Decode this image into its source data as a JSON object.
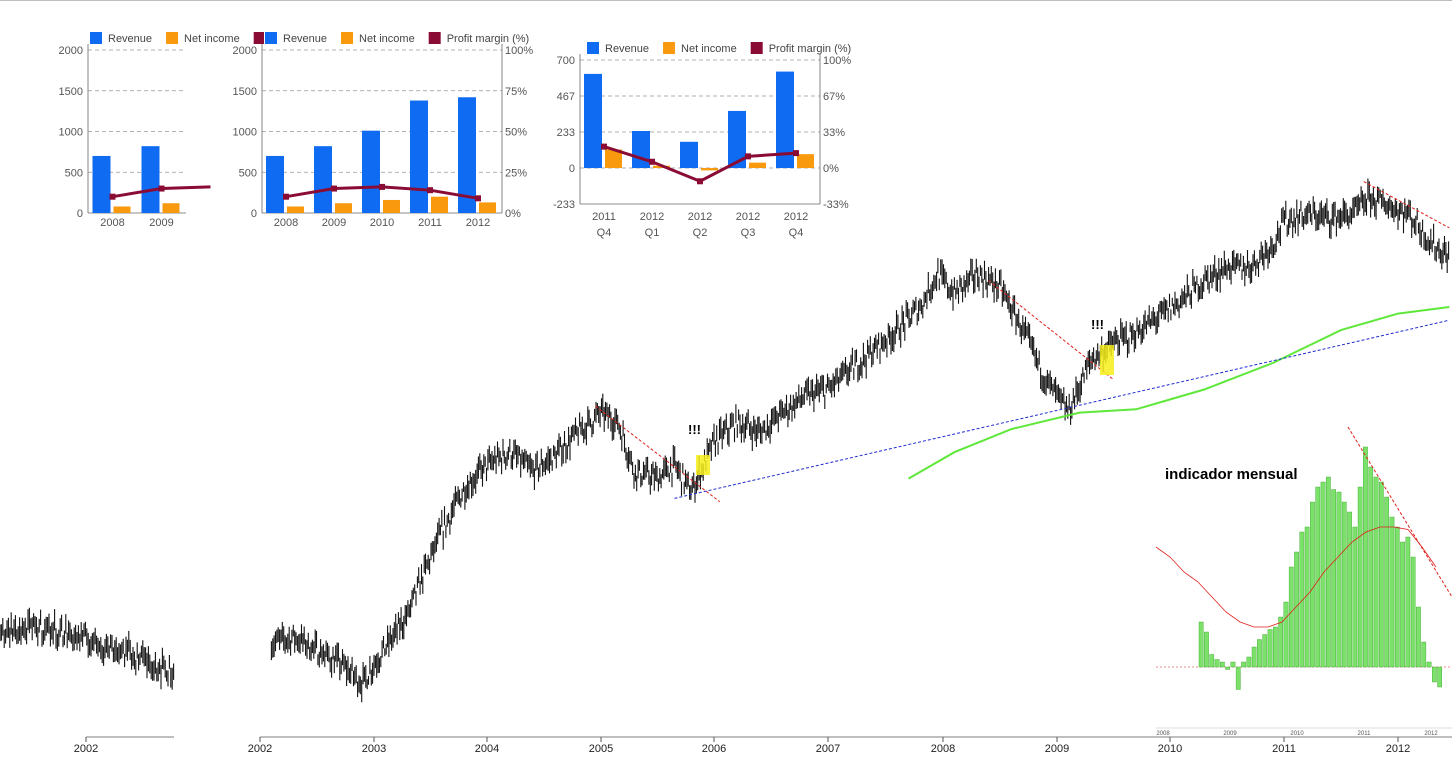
{
  "colors": {
    "revenue": "#0f6bf2",
    "net_income": "#f99a0e",
    "margin": "#8a0b33",
    "candles": "#111111",
    "trend_red": "#e0201b",
    "trend_blue": "#1f2bd1",
    "moving_average": "#5fe83a",
    "highlight": "#f6ef1a",
    "histogram": "#7be16a",
    "histogram_ma": "#e0201b"
  },
  "legend": {
    "revenue": "Revenue",
    "net_income": "Net income",
    "margin": "Profit margin (%)"
  },
  "annotations": {
    "marker_1": "!!!",
    "marker_2": "!!!"
  },
  "indicator": {
    "title": "indicador mensual",
    "axis_years": [
      "2008",
      "2009",
      "2010",
      "2011",
      "2012"
    ]
  },
  "price_axis_years": [
    "2002",
    "2003",
    "2004",
    "2005",
    "2006",
    "2007",
    "2008",
    "2009",
    "2010",
    "2011",
    "2012"
  ],
  "left_axis_years": [
    "2002"
  ],
  "chart_data": [
    {
      "type": "bar",
      "categories": [
        "2008",
        "2009"
      ],
      "series": [
        {
          "name": "Revenue",
          "values": [
            700,
            820
          ]
        },
        {
          "name": "",
          "values": [
            80,
            120
          ]
        }
      ],
      "line_series": {
        "name": "",
        "values": [
          10,
          15
        ]
      },
      "ylim": [
        0,
        2000
      ],
      "yticks": [
        "0",
        "500",
        "1000",
        "1500",
        "2000"
      ],
      "grid": true,
      "legend": "top"
    },
    {
      "type": "bar",
      "categories": [
        "2008",
        "2009",
        "2010",
        "2011",
        "2012"
      ],
      "series": [
        {
          "name": "Revenue",
          "values": [
            700,
            820,
            1010,
            1380,
            1420
          ]
        },
        {
          "name": "Net income",
          "values": [
            80,
            120,
            160,
            200,
            130
          ]
        }
      ],
      "line_series": {
        "name": "Profit margin (%)",
        "values": [
          10,
          15,
          16,
          14,
          9
        ],
        "axis": "right"
      },
      "ylim": [
        0,
        2000
      ],
      "yticks": [
        "0",
        "500",
        "1000",
        "1500",
        "2000"
      ],
      "y2lim": [
        0,
        100
      ],
      "y2ticks": [
        "0%",
        "25%",
        "50%",
        "75%",
        "100%"
      ],
      "grid": true,
      "legend": "top"
    },
    {
      "type": "bar",
      "categories": [
        "2011 Q4",
        "2012 Q1",
        "2012 Q2",
        "2012 Q3",
        "2012 Q4"
      ],
      "category_lines": [
        [
          "2011",
          "Q4"
        ],
        [
          "2012",
          "Q1"
        ],
        [
          "2012",
          "Q2"
        ],
        [
          "2012",
          "Q3"
        ],
        [
          "2012",
          "Q4"
        ]
      ],
      "series": [
        {
          "name": "Revenue",
          "values": [
            610,
            240,
            170,
            370,
            625
          ]
        },
        {
          "name": "Net income",
          "values": [
            120,
            15,
            -15,
            35,
            90
          ]
        }
      ],
      "line_series": {
        "name": "Profit margin (%)",
        "values": [
          20,
          6,
          -12,
          11,
          14
        ],
        "axis": "right"
      },
      "ylim": [
        -233,
        700
      ],
      "yticks": [
        "-233",
        "0",
        "233",
        "467",
        "700"
      ],
      "y2lim": [
        -33,
        100
      ],
      "y2ticks": [
        "-33%",
        "0%",
        "33%",
        "67%",
        "100%"
      ],
      "grid": true,
      "legend": "top"
    },
    {
      "type": "line",
      "title": "",
      "x_range": [
        2002.1,
        2012.45
      ],
      "price_path": [
        [
          2002.1,
          0.08
        ],
        [
          2002.3,
          0.1
        ],
        [
          2002.5,
          0.06
        ],
        [
          2002.7,
          0.02
        ],
        [
          2002.9,
          -0.04
        ],
        [
          2003.0,
          0.02
        ],
        [
          2003.15,
          0.09
        ],
        [
          2003.3,
          0.17
        ],
        [
          2003.45,
          0.3
        ],
        [
          2003.6,
          0.42
        ],
        [
          2003.8,
          0.55
        ],
        [
          2004.0,
          0.62
        ],
        [
          2004.2,
          0.66
        ],
        [
          2004.4,
          0.6
        ],
        [
          2004.6,
          0.65
        ],
        [
          2004.8,
          0.72
        ],
        [
          2005.0,
          0.78
        ],
        [
          2005.15,
          0.75
        ],
        [
          2005.3,
          0.6
        ],
        [
          2005.5,
          0.58
        ],
        [
          2005.65,
          0.62
        ],
        [
          2005.8,
          0.54
        ],
        [
          2006.0,
          0.69
        ],
        [
          2006.2,
          0.75
        ],
        [
          2006.4,
          0.72
        ],
        [
          2006.6,
          0.78
        ],
        [
          2006.8,
          0.83
        ],
        [
          2007.0,
          0.85
        ],
        [
          2007.2,
          0.91
        ],
        [
          2007.4,
          0.97
        ],
        [
          2007.6,
          1.03
        ],
        [
          2007.8,
          1.1
        ],
        [
          2007.95,
          1.2
        ],
        [
          2008.1,
          1.14
        ],
        [
          2008.3,
          1.2
        ],
        [
          2008.5,
          1.16
        ],
        [
          2008.7,
          1.03
        ],
        [
          2008.9,
          0.88
        ],
        [
          2009.1,
          0.78
        ],
        [
          2009.3,
          0.94
        ],
        [
          2009.5,
          0.99
        ],
        [
          2009.7,
          1.02
        ],
        [
          2009.9,
          1.07
        ],
        [
          2010.1,
          1.12
        ],
        [
          2010.3,
          1.18
        ],
        [
          2010.5,
          1.22
        ],
        [
          2010.7,
          1.22
        ],
        [
          2010.9,
          1.29
        ],
        [
          2011.0,
          1.36
        ],
        [
          2011.2,
          1.38
        ],
        [
          2011.4,
          1.37
        ],
        [
          2011.6,
          1.38
        ],
        [
          2011.75,
          1.43
        ],
        [
          2011.9,
          1.41
        ],
        [
          2012.1,
          1.38
        ],
        [
          2012.3,
          1.29
        ],
        [
          2012.45,
          1.25
        ]
      ],
      "moving_average": [
        [
          2007.7,
          0.58
        ],
        [
          2008.1,
          0.66
        ],
        [
          2008.6,
          0.73
        ],
        [
          2009.2,
          0.78
        ],
        [
          2009.7,
          0.79
        ],
        [
          2010.3,
          0.85
        ],
        [
          2010.9,
          0.93
        ],
        [
          2011.5,
          1.03
        ],
        [
          2012.0,
          1.08
        ],
        [
          2012.45,
          1.1
        ]
      ],
      "trend_lines": [
        {
          "color": "red",
          "points": [
            [
              2004.95,
              0.8
            ],
            [
              2006.05,
              0.51
            ]
          ]
        },
        {
          "color": "red",
          "points": [
            [
              2008.4,
              1.18
            ],
            [
              2009.5,
              0.88
            ]
          ]
        },
        {
          "color": "red",
          "points": [
            [
              2011.7,
              1.48
            ],
            [
              2012.45,
              1.34
            ]
          ]
        },
        {
          "color": "blue",
          "points": [
            [
              2005.65,
              0.52
            ],
            [
              2012.45,
              1.06
            ]
          ]
        }
      ],
      "grid": false
    },
    {
      "type": "bar",
      "title": "indicador mensual",
      "values": [
        0.9,
        0.7,
        0.25,
        0.15,
        0.1,
        -0.05,
        0.1,
        -0.45,
        0.1,
        0.2,
        0.4,
        0.55,
        0.65,
        0.75,
        0.8,
        1.0,
        1.3,
        2.0,
        2.3,
        2.7,
        2.8,
        3.3,
        3.6,
        3.7,
        3.8,
        3.55,
        3.5,
        3.3,
        3.1,
        2.8,
        3.6,
        4.4,
        4.0,
        3.8,
        3.7,
        3.4,
        3.0,
        2.8,
        2.5,
        2.6,
        2.2,
        1.2,
        0.5,
        0.1,
        -0.3,
        -0.4
      ],
      "ma_values": [
        2.4,
        2.2,
        1.9,
        1.7,
        1.4,
        1.1,
        0.9,
        0.8,
        0.8,
        0.9,
        1.2,
        1.5,
        1.9,
        2.2,
        2.5,
        2.7,
        2.8,
        2.8,
        2.75,
        2.4,
        2.0
      ],
      "grid": false
    }
  ]
}
